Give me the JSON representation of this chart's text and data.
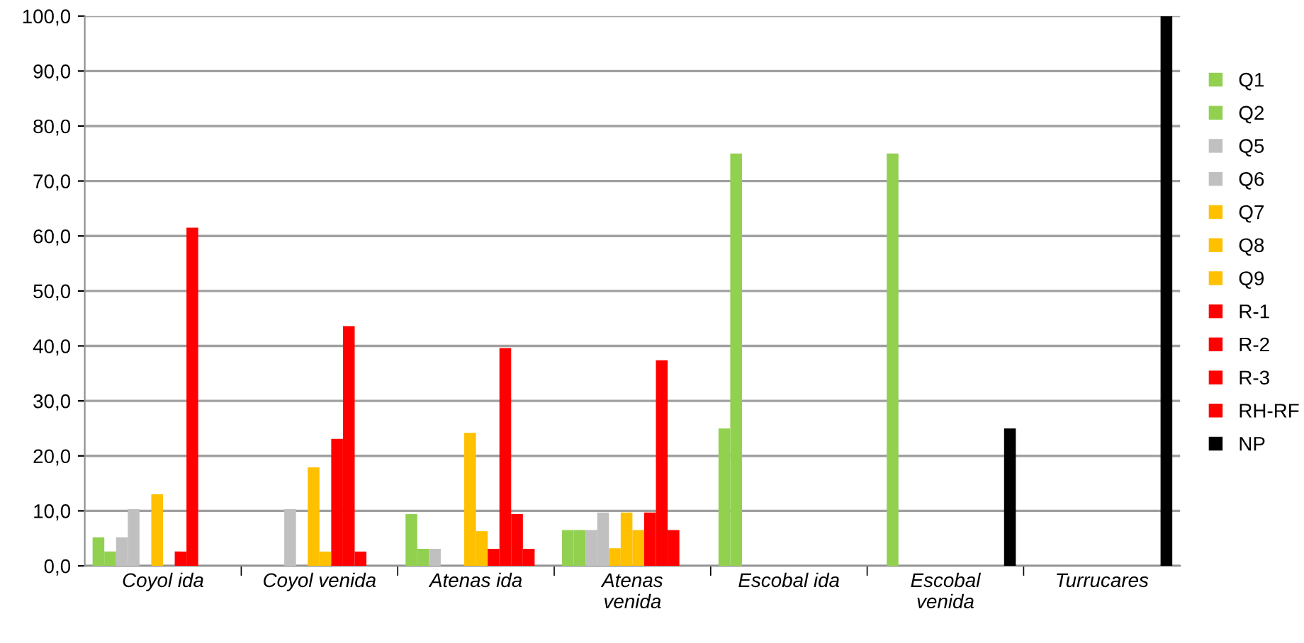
{
  "chart_data": {
    "type": "bar",
    "categories": [
      "Coyol ida",
      "Coyol venida",
      "Atenas ida",
      "Atenas\nvenida",
      "Escobal ida",
      "Escobal\nvenida",
      "Turrucares"
    ],
    "series": [
      {
        "name": "Q1",
        "color": "#92d050",
        "values": [
          5.2,
          0,
          9.4,
          6.5,
          25,
          0,
          0
        ]
      },
      {
        "name": "Q2",
        "color": "#92d050",
        "values": [
          2.6,
          0,
          3.1,
          6.5,
          75,
          75,
          0
        ]
      },
      {
        "name": "Q5",
        "color": "#c0c0c0",
        "values": [
          5.2,
          0,
          3.1,
          6.5,
          0,
          0,
          0
        ]
      },
      {
        "name": "Q6",
        "color": "#c0c0c0",
        "values": [
          10.3,
          10.3,
          0,
          9.7,
          0,
          0,
          0
        ]
      },
      {
        "name": "Q7",
        "color": "#ffc000",
        "values": [
          0,
          0,
          0,
          3.2,
          0,
          0,
          0
        ]
      },
      {
        "name": "Q8",
        "color": "#ffc000",
        "values": [
          13,
          17.9,
          24.2,
          9.7,
          0,
          0,
          0
        ]
      },
      {
        "name": "Q9",
        "color": "#ffc000",
        "values": [
          0,
          2.6,
          6.3,
          6.5,
          0,
          0,
          0
        ]
      },
      {
        "name": "R-1",
        "color": "#ff0000",
        "values": [
          2.6,
          23.1,
          3.1,
          9.7,
          0,
          0,
          0
        ]
      },
      {
        "name": "R-2",
        "color": "#ff0000",
        "values": [
          61.5,
          43.6,
          39.6,
          37.4,
          0,
          0,
          0
        ]
      },
      {
        "name": "R-3",
        "color": "#ff0000",
        "values": [
          0,
          2.6,
          9.4,
          6.5,
          0,
          0,
          0
        ]
      },
      {
        "name": "RH-RF",
        "color": "#ff0000",
        "values": [
          0,
          0,
          3.1,
          0,
          0,
          0,
          0
        ]
      },
      {
        "name": "NP",
        "color": "#000000",
        "values": [
          0,
          0,
          0,
          0,
          0,
          25,
          100
        ]
      }
    ],
    "ylim": [
      0,
      100
    ],
    "yticks": [
      {
        "value": 0,
        "label": "0,0"
      },
      {
        "value": 10,
        "label": "10,0"
      },
      {
        "value": 20,
        "label": "20,0"
      },
      {
        "value": 30,
        "label": "30,0"
      },
      {
        "value": 40,
        "label": "40,0"
      },
      {
        "value": 50,
        "label": "50,0"
      },
      {
        "value": 60,
        "label": "60,0"
      },
      {
        "value": 70,
        "label": "70,0"
      },
      {
        "value": 80,
        "label": "80,0"
      },
      {
        "value": 90,
        "label": "90,0"
      },
      {
        "value": 100,
        "label": "100,0"
      }
    ],
    "grid": "y",
    "legend": "right"
  }
}
